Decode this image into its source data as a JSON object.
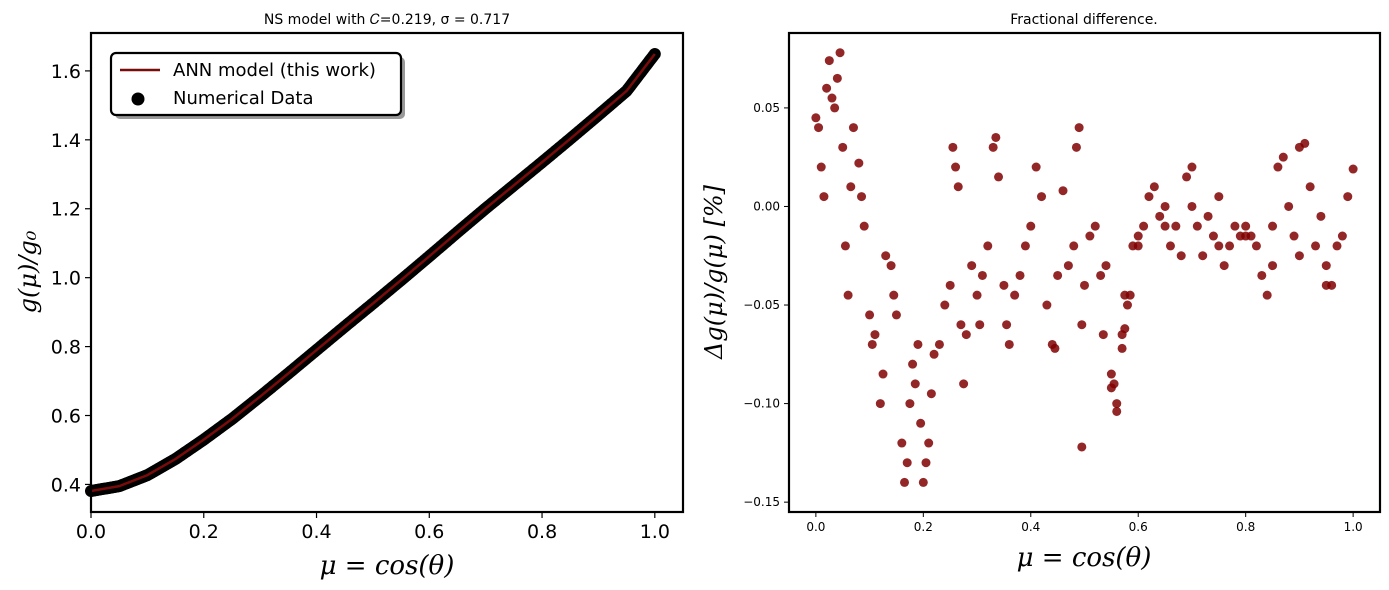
{
  "figure": {
    "left_title": "NS model with 𝐶=0.219, σ = 0.717",
    "right_title": "Fractional difference.",
    "left_xlabel": "μ = cos(θ)",
    "left_ylabel": "g(μ)/g₀",
    "right_xlabel": "μ = cos(θ)",
    "right_ylabel": "Δg(μ)/g(μ)  [%]",
    "legend_line": "ANN model (this work)",
    "legend_points": "Numerical Data"
  },
  "colors": {
    "model_line": "#7a0b0b",
    "data_points": "#000000",
    "diff_points": "#800000"
  },
  "chart_data": [
    {
      "type": "line",
      "title": "NS model with 𝐶=0.219, σ = 0.717",
      "xlabel": "μ = cos(θ)",
      "ylabel": "g(μ)/g₀",
      "xlim": [
        0.0,
        1.05
      ],
      "ylim": [
        0.32,
        1.71
      ],
      "xticks": [
        "0.0",
        "0.2",
        "0.4",
        "0.6",
        "0.8",
        "1.0"
      ],
      "yticks": [
        "0.4",
        "0.6",
        "0.8",
        "1.0",
        "1.2",
        "1.4",
        "1.6"
      ],
      "legend_position": "upper-left",
      "series": [
        {
          "name": "ANN model (this work)",
          "type": "line",
          "x": [
            0.0,
            0.05,
            0.1,
            0.15,
            0.2,
            0.25,
            0.3,
            0.35,
            0.4,
            0.45,
            0.5,
            0.55,
            0.6,
            0.65,
            0.7,
            0.75,
            0.8,
            0.85,
            0.9,
            0.95,
            1.0
          ],
          "y": [
            0.381,
            0.395,
            0.427,
            0.474,
            0.53,
            0.59,
            0.655,
            0.722,
            0.79,
            0.858,
            0.925,
            0.993,
            1.062,
            1.132,
            1.201,
            1.268,
            1.335,
            1.403,
            1.472,
            1.542,
            1.649
          ]
        },
        {
          "name": "Numerical Data",
          "type": "scatter",
          "x": [
            0.0,
            0.05,
            0.1,
            0.15,
            0.2,
            0.25,
            0.3,
            0.35,
            0.4,
            0.45,
            0.5,
            0.55,
            0.6,
            0.65,
            0.7,
            0.75,
            0.8,
            0.85,
            0.9,
            0.95,
            1.0
          ],
          "y": [
            0.381,
            0.395,
            0.427,
            0.474,
            0.53,
            0.59,
            0.655,
            0.722,
            0.79,
            0.858,
            0.925,
            0.993,
            1.062,
            1.132,
            1.201,
            1.268,
            1.335,
            1.403,
            1.472,
            1.542,
            1.649
          ]
        }
      ]
    },
    {
      "type": "scatter",
      "title": "Fractional difference.",
      "xlabel": "μ = cos(θ)",
      "ylabel": "Δg(μ)/g(μ)  [%]",
      "xlim": [
        -0.05,
        1.05
      ],
      "ylim": [
        -0.155,
        0.088
      ],
      "xticks": [
        "0.0",
        "0.2",
        "0.4",
        "0.6",
        "0.8",
        "1.0"
      ],
      "yticks": [
        "−0.15",
        "−0.10",
        "−0.05",
        "0.00",
        "0.05"
      ],
      "series": [
        {
          "name": "",
          "x": [
            0.0,
            0.005,
            0.01,
            0.015,
            0.02,
            0.025,
            0.03,
            0.035,
            0.04,
            0.045,
            0.05,
            0.055,
            0.06,
            0.065,
            0.07,
            0.08,
            0.085,
            0.09,
            0.1,
            0.105,
            0.11,
            0.12,
            0.125,
            0.13,
            0.14,
            0.145,
            0.15,
            0.16,
            0.165,
            0.17,
            0.175,
            0.18,
            0.185,
            0.19,
            0.195,
            0.2,
            0.205,
            0.21,
            0.215,
            0.22,
            0.23,
            0.24,
            0.25,
            0.255,
            0.26,
            0.265,
            0.27,
            0.275,
            0.28,
            0.29,
            0.3,
            0.305,
            0.31,
            0.32,
            0.33,
            0.335,
            0.34,
            0.35,
            0.355,
            0.36,
            0.37,
            0.38,
            0.39,
            0.4,
            0.41,
            0.42,
            0.43,
            0.44,
            0.445,
            0.45,
            0.46,
            0.47,
            0.48,
            0.485,
            0.49,
            0.495,
            0.5,
            0.51,
            0.52,
            0.53,
            0.535,
            0.54,
            0.55,
            0.555,
            0.56,
            0.57,
            0.575,
            0.58,
            0.59,
            0.6,
            0.61,
            0.62,
            0.63,
            0.64,
            0.65,
            0.66,
            0.67,
            0.68,
            0.69,
            0.7,
            0.71,
            0.72,
            0.73,
            0.74,
            0.75,
            0.76,
            0.77,
            0.78,
            0.79,
            0.8,
            0.81,
            0.82,
            0.83,
            0.84,
            0.85,
            0.86,
            0.87,
            0.88,
            0.89,
            0.9,
            0.91,
            0.92,
            0.93,
            0.94,
            0.95,
            0.96,
            0.97,
            0.98,
            0.99,
            1.0
          ],
          "y": [
            0.045,
            0.04,
            0.02,
            0.005,
            0.06,
            0.074,
            0.055,
            0.05,
            0.065,
            0.078,
            0.03,
            -0.02,
            -0.045,
            0.01,
            0.04,
            0.022,
            0.005,
            -0.01,
            -0.055,
            -0.07,
            -0.065,
            -0.1,
            -0.085,
            -0.025,
            -0.03,
            -0.045,
            -0.055,
            -0.12,
            -0.14,
            -0.13,
            -0.1,
            -0.08,
            -0.09,
            -0.07,
            -0.11,
            -0.14,
            -0.13,
            -0.12,
            -0.095,
            -0.075,
            -0.07,
            -0.05,
            -0.04,
            0.03,
            0.02,
            0.01,
            -0.06,
            -0.09,
            -0.065,
            -0.03,
            -0.045,
            -0.06,
            -0.035,
            -0.02,
            0.03,
            0.035,
            0.015,
            -0.04,
            -0.06,
            -0.07,
            -0.045,
            -0.035,
            -0.02,
            -0.01,
            0.02,
            0.005,
            -0.05,
            -0.07,
            -0.072,
            -0.035,
            0.008,
            -0.03,
            -0.02,
            0.03,
            0.04,
            -0.06,
            -0.04,
            -0.015,
            -0.01,
            -0.035,
            -0.065,
            -0.03,
            -0.085,
            -0.09,
            -0.1,
            -0.065,
            -0.045,
            -0.05,
            -0.02,
            -0.015,
            -0.01,
            0.005,
            0.01,
            -0.005,
            0.0,
            -0.02,
            -0.01,
            -0.025,
            0.015,
            0.02,
            -0.01,
            -0.025,
            -0.005,
            -0.015,
            0.005,
            -0.03,
            -0.02,
            -0.01,
            -0.015,
            -0.01,
            -0.015,
            -0.02,
            -0.035,
            -0.045,
            -0.01,
            0.02,
            0.025,
            0.0,
            -0.015,
            0.03,
            0.032,
            0.01,
            -0.02,
            -0.005,
            -0.03,
            -0.04,
            -0.02,
            -0.015,
            0.005,
            0.019
          ]
        },
        {
          "name": "",
          "x": [
            0.495,
            0.55,
            0.56,
            0.57,
            0.575,
            0.585,
            0.6,
            0.65,
            0.7,
            0.75,
            0.8,
            0.85,
            0.9,
            0.95
          ],
          "y": [
            -0.122,
            -0.092,
            -0.104,
            -0.072,
            -0.062,
            -0.045,
            -0.02,
            -0.01,
            0.0,
            -0.02,
            -0.015,
            -0.03,
            -0.025,
            -0.04
          ]
        }
      ]
    }
  ]
}
